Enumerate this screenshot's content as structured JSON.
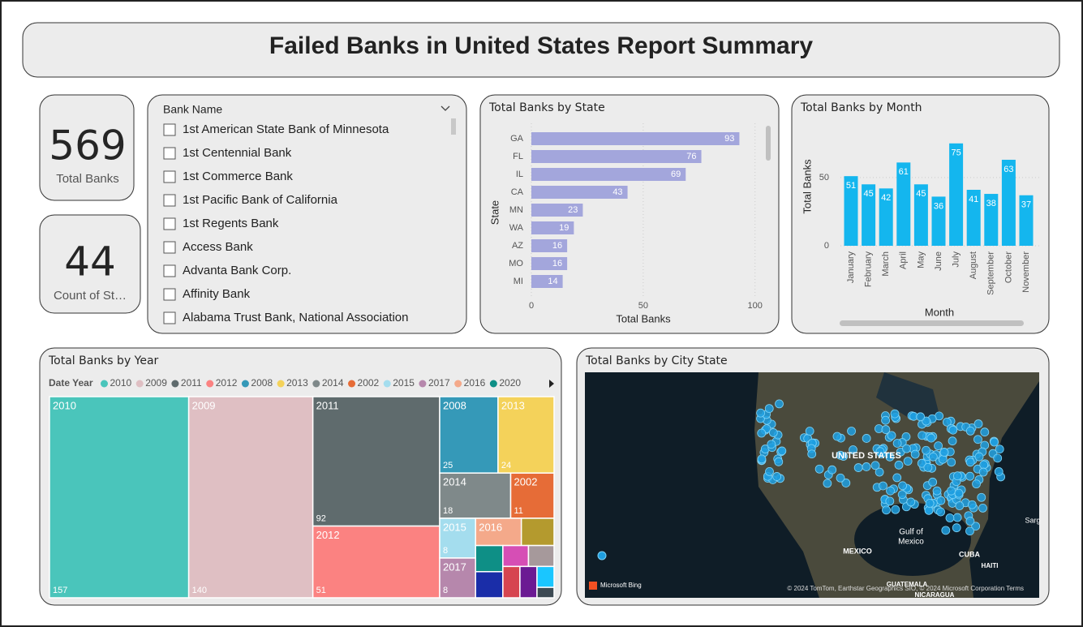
{
  "header": {
    "title": "Failed Banks in United States Report Summary"
  },
  "cards": [
    {
      "value": 569,
      "label": "Total Banks"
    },
    {
      "value": 44,
      "label": "Count of St…"
    }
  ],
  "slicer": {
    "title": "Bank Name",
    "items": [
      "1st American State Bank of Minnesota",
      "1st Centennial Bank",
      "1st Commerce Bank",
      "1st Pacific Bank of California",
      "1st Regents Bank",
      "Access Bank",
      "Advanta Bank Corp.",
      "Affinity Bank",
      "Alabama Trust Bank, National Association"
    ]
  },
  "chart_data": [
    {
      "type": "bar",
      "orientation": "horizontal",
      "title": "Total Banks by State",
      "categories": [
        "GA",
        "FL",
        "IL",
        "CA",
        "MN",
        "WA",
        "AZ",
        "MO",
        "MI"
      ],
      "values": [
        93,
        76,
        69,
        43,
        23,
        19,
        16,
        16,
        14
      ],
      "color": "#a3a6dc",
      "xlabel": "Total Banks",
      "ylabel": "State",
      "xlim": [
        0,
        103
      ],
      "xticks": [
        0,
        50,
        100
      ],
      "grid": true
    },
    {
      "type": "bar",
      "orientation": "vertical",
      "title": "Total Banks by Month",
      "categories": [
        "January",
        "February",
        "March",
        "April",
        "May",
        "June",
        "July",
        "August",
        "September",
        "October",
        "November"
      ],
      "values": [
        51,
        45,
        42,
        61,
        45,
        36,
        75,
        41,
        38,
        63,
        37
      ],
      "color": "#14b6ee",
      "xlabel": "Month",
      "ylabel": "Total Banks",
      "ylim": [
        0,
        82
      ],
      "yticks": [
        0,
        50
      ],
      "grid": true
    },
    {
      "type": "treemap",
      "title": "Total Banks by Year",
      "legend_title": "Date Year",
      "categories": [
        "2010",
        "2009",
        "2011",
        "2012",
        "2008",
        "2013",
        "2014",
        "2002",
        "2015",
        "2017",
        "2016",
        null,
        "2020",
        null,
        null,
        null,
        null,
        null,
        null,
        null
      ],
      "values": [
        157,
        140,
        92,
        51,
        25,
        24,
        18,
        11,
        8,
        8,
        7,
        5,
        4,
        4,
        3,
        3,
        3,
        3,
        2,
        1
      ],
      "colors": [
        "#4ac5bb",
        "#dfbfc3",
        "#5f6b6d",
        "#fb8281",
        "#3599b8",
        "#f4d25a",
        "#7f898a",
        "#e66c37",
        "#a4ddee",
        "#b687ac",
        "#f4a98a",
        "#b49a2e",
        "#0e8f86",
        "#1a2da8",
        "#d64eb5",
        "#a6999b",
        "#d64550",
        "#6b1a93",
        "#1ac6ff",
        "#3d4a53"
      ]
    }
  ],
  "map": {
    "title": "Total Banks by City State",
    "labels": [
      "UNITED STATES",
      "Gulf of",
      "Mexico",
      "MEXICO",
      "CUBA",
      "HAITI",
      "GUATEMALA",
      "NICARAGUA",
      "Sarg"
    ],
    "logo": "Microsoft Bing",
    "attribution": "© 2024 TomTom, Earthstar Geographics SIO, © 2024 Microsoft Corporation Terms"
  }
}
